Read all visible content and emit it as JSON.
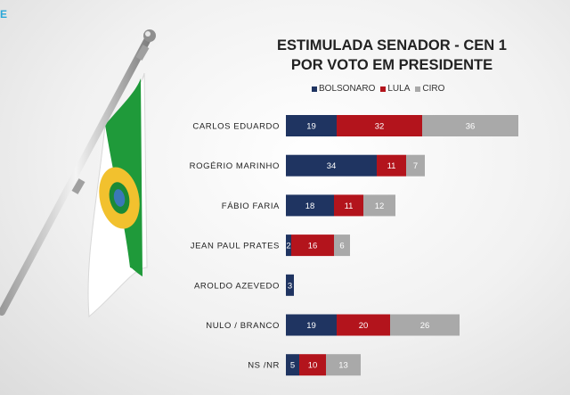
{
  "corner_text": "E",
  "chart_data": {
    "type": "bar",
    "orientation": "horizontal",
    "stacked": true,
    "title_lines": [
      "ESTIMULADA SENADOR - CEN 1",
      "POR VOTO EM PRESIDENTE"
    ],
    "title": "ESTIMULADA SENADOR - CEN 1 POR VOTO EM PRESIDENTE",
    "categories": [
      "CARLOS EDUARDO",
      "ROGÉRIO MARINHO",
      "FÁBIO FARIA",
      "JEAN PAUL PRATES",
      "AROLDO AZEVEDO",
      "NULO / BRANCO",
      "NS /NR"
    ],
    "series": [
      {
        "name": "BOLSONARO",
        "color": "#1f3461",
        "values": [
          19,
          34,
          18,
          2,
          3,
          19,
          5
        ]
      },
      {
        "name": "LULA",
        "color": "#b3141c",
        "values": [
          32,
          11,
          11,
          16,
          null,
          20,
          10
        ]
      },
      {
        "name": "CIRO",
        "color": "#a9a9a9",
        "values": [
          36,
          7,
          12,
          6,
          null,
          26,
          13
        ]
      }
    ],
    "legend_position": "top",
    "grid": false,
    "xaxis_visible": false,
    "xlim": [
      0,
      100
    ]
  }
}
